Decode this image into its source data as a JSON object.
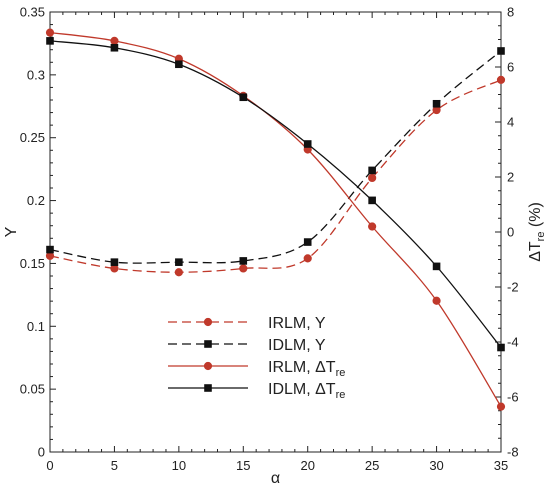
{
  "chart_data": {
    "type": "line",
    "xlabel": "α",
    "ylabel_left": "Y",
    "ylabel_right": "ΔTre (%)",
    "ylabel_right_main": "ΔT",
    "ylabel_right_sub": "re",
    "ylabel_right_suffix": " (%)",
    "xlim": [
      0,
      35
    ],
    "ylim_left": [
      0,
      0.35
    ],
    "ylim_right": [
      -8,
      8
    ],
    "x_ticks": [
      "0",
      "5",
      "10",
      "15",
      "20",
      "25",
      "30",
      "35"
    ],
    "y_left_ticks": [
      "0",
      "0.05",
      "0.1",
      "0.15",
      "0.2",
      "0.25",
      "0.3",
      "0.35"
    ],
    "y_right_ticks": [
      "-8",
      "-6",
      "-4",
      "-2",
      "0",
      "2",
      "4",
      "6",
      "8"
    ],
    "grid": false,
    "legend_position": "center-left",
    "series": [
      {
        "name": "IRLM, Y",
        "name_main": "IRLM, Y",
        "name_sub": "",
        "axis": "left",
        "color": "#c0392b",
        "line_style": "dashed",
        "marker": "circle",
        "x": [
          0,
          5,
          10,
          15,
          20,
          25,
          30,
          35
        ],
        "values": [
          0.156,
          0.146,
          0.143,
          0.146,
          0.154,
          0.218,
          0.272,
          0.296
        ]
      },
      {
        "name": "IDLM, Y",
        "name_main": "IDLM, Y",
        "name_sub": "",
        "axis": "left",
        "color": "#111111",
        "line_style": "dashed",
        "marker": "square",
        "x": [
          0,
          5,
          10,
          15,
          20,
          25,
          30,
          35
        ],
        "values": [
          0.161,
          0.151,
          0.151,
          0.152,
          0.167,
          0.224,
          0.277,
          0.319
        ]
      },
      {
        "name": "IRLM, ΔTre",
        "name_main": "IRLM, ΔT",
        "name_sub": "re",
        "axis": "right",
        "color": "#c0392b",
        "line_style": "solid",
        "marker": "circle",
        "x": [
          0,
          5,
          10,
          15,
          20,
          25,
          30,
          35
        ],
        "values": [
          7.25,
          6.95,
          6.3,
          4.95,
          3.0,
          0.2,
          -2.5,
          -6.35
        ]
      },
      {
        "name": "IDLM, ΔTre",
        "name_main": "IDLM, ΔT",
        "name_sub": "re",
        "axis": "right",
        "color": "#111111",
        "line_style": "solid",
        "marker": "square",
        "x": [
          0,
          5,
          10,
          15,
          20,
          25,
          30,
          35
        ],
        "values": [
          6.95,
          6.7,
          6.1,
          4.9,
          3.2,
          1.15,
          -1.25,
          -4.2
        ]
      }
    ]
  }
}
